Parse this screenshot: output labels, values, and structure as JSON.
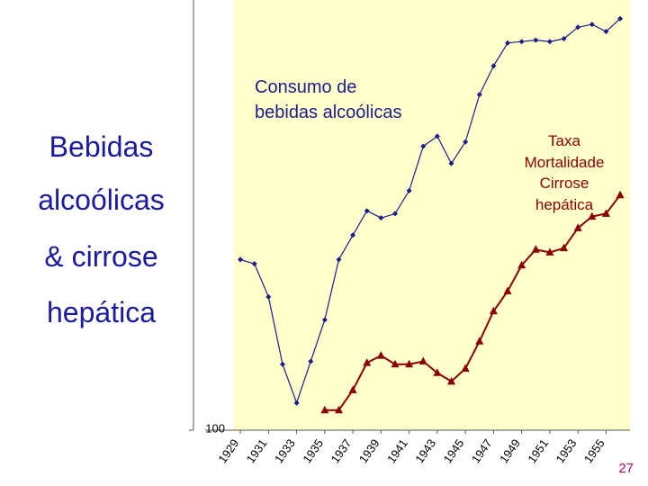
{
  "chart_data": {
    "type": "line",
    "title": [
      "Bebidas",
      "alcoólicas",
      "& cirrose",
      "hepática"
    ],
    "x": [
      1929,
      1930,
      1931,
      1932,
      1933,
      1934,
      1935,
      1936,
      1937,
      1938,
      1939,
      1940,
      1941,
      1942,
      1943,
      1944,
      1945,
      1946,
      1947,
      1948,
      1949,
      1950,
      1951,
      1952,
      1953,
      1954,
      1955,
      1956
    ],
    "series": [
      {
        "name_lines": [
          "Consumo de",
          "bebidas alcoólicas"
        ],
        "color": "#1c1c8a",
        "marker": "diamond",
        "values": [
          219,
          216,
          193,
          146,
          119,
          148,
          177,
          219,
          236,
          253,
          248,
          251,
          267,
          298,
          305,
          286,
          301,
          334,
          354,
          370,
          371,
          372,
          371,
          373,
          381,
          383,
          378,
          387
        ]
      },
      {
        "name_lines": [
          "Taxa",
          "Mortalidade",
          "Cirrose",
          "hepática"
        ],
        "color": "#8b0000",
        "marker": "triangle",
        "values": [
          null,
          null,
          null,
          null,
          null,
          null,
          114,
          114,
          128,
          147,
          152,
          146,
          146,
          148,
          140,
          134,
          143,
          162,
          183,
          197,
          215,
          226,
          224,
          227,
          241,
          249,
          251,
          264
        ]
      }
    ],
    "xlim": [
      1926.5,
      1956.7
    ],
    "xticks": [
      1929,
      1931,
      1933,
      1935,
      1937,
      1939,
      1941,
      1943,
      1945,
      1947,
      1949,
      1951,
      1953,
      1955
    ],
    "ylim": [
      100,
      400
    ],
    "yticks": [
      100
    ],
    "page_number": "27"
  }
}
